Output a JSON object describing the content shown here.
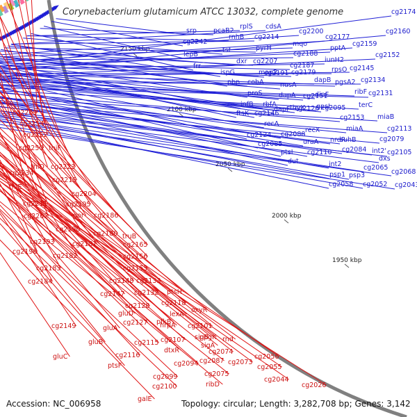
{
  "title": "Corynebacterium glutamicum ATCC 13032, complete genome",
  "footer": {
    "accession": "Accession: NC_006958",
    "summary": "Topology: circular; Length: 3,282,708 bp; Genes: 3,142"
  },
  "colors": {
    "plus_strand": "#1f1fd6",
    "minus_strand": "#e01414",
    "plus_label": "#1a1acc",
    "minus_label": "#cc1111",
    "backbone": "#808080",
    "scale_text": "#222222"
  },
  "scale_ticks": [
    "2150 kbp",
    "2100 kbp",
    "2050 kbp",
    "2000 kbp",
    "1950 kbp"
  ],
  "plus_labels": [
    "srp",
    "pcaB2",
    "rplS",
    "cdsA",
    "cg2174",
    "cg2242",
    "rnhB",
    "cg2214",
    "cg2200",
    "cg2160",
    "lepB",
    "tsf",
    "pyrH",
    "mqo",
    "cg2177",
    "cg2159",
    "frr",
    "dxr",
    "cg2207",
    "cg2188",
    "pptA",
    "cg2152",
    "ispG",
    "map2",
    "cg2187",
    "iunH2",
    "cg2145",
    "pbp",
    "cobA",
    "cg2191",
    "cg2179",
    "rpsO",
    "cg2134",
    "proS",
    "nusA",
    "dapB",
    "pgsA2",
    "cg2131",
    "infB",
    "rbfA",
    "dapA",
    "cg2151",
    "dinF",
    "ribF",
    "ftsK",
    "cg2146",
    "dapF",
    "thyX",
    "gpsI",
    "terC",
    "recA",
    "cg2126",
    "cg2095",
    "cg2153",
    "miaB",
    "cg2124",
    "cg2088",
    "recX",
    "miaA",
    "cg2113",
    "cg2085",
    "uraA",
    "nrdR",
    "suhB",
    "cg2079",
    "ptsI",
    "cg2110",
    "cg2084",
    "int2'",
    "cg2105",
    "dut",
    "int2",
    "cg2065",
    "dxs",
    "psp1",
    "psp3",
    "cg2068",
    "cg2058",
    "cg2052",
    "cg2043"
  ],
  "minus_labels": [
    "cg2269",
    "cg2254",
    "cg2252",
    "cg2250",
    "thiF",
    "thiO",
    "cg2223",
    "cg2234",
    "cg2215",
    "thiE",
    "cg2204",
    "cg2211",
    "cg2195",
    "cg2202",
    "gor",
    "cg2186",
    "cg2190",
    "cg2180",
    "truB",
    "cg2193",
    "cg2181",
    "cg2165",
    "cg2196",
    "cg2182",
    "cg2156",
    "cg2183",
    "cg2155",
    "cg2184",
    "cg2148",
    "cg2133",
    "cg2147",
    "cg2132",
    "ptsH",
    "cg2118",
    "cg2128",
    "lexA",
    "oxyR",
    "gluD",
    "cg2127",
    "pfkB",
    "hrpA",
    "cg2149",
    "gluA",
    "cg2101",
    "cg2115",
    "cg2107",
    "gluB",
    "sigB",
    "ppgK",
    "sigA",
    "rnd",
    "cg2116",
    "dtxR",
    "cg2074",
    "gluC",
    "cg2094",
    "cg2087",
    "cg2073",
    "cg2056",
    "ptsF",
    "cg2075",
    "cg2055",
    "cg2099",
    "cg2044",
    "ribD",
    "cg2026",
    "cg2100",
    "galE"
  ]
}
